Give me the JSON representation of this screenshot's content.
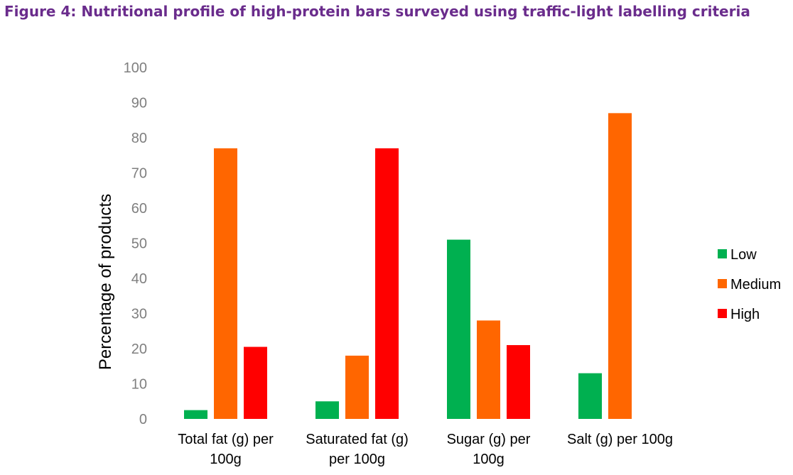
{
  "title": "Figure 4: Nutritional profile of high-protein bars surveyed using traffic-light labelling criteria",
  "chart_data": {
    "type": "bar",
    "title": "Figure 4: Nutritional profile of high-protein bars surveyed using traffic-light labelling criteria",
    "xlabel": "",
    "ylabel": "Percentage of products",
    "ylim": [
      0,
      100
    ],
    "yticks": [
      0,
      10,
      20,
      30,
      40,
      50,
      60,
      70,
      80,
      90,
      100
    ],
    "grid": false,
    "legend_position": "right",
    "categories": [
      [
        "Total fat (g) per",
        "100g"
      ],
      [
        "Saturated fat (g)",
        "per 100g"
      ],
      [
        "Sugar (g) per",
        "100g"
      ],
      [
        "Salt (g) per 100g"
      ]
    ],
    "series": [
      {
        "name": "Low",
        "color": "#00b050",
        "values": [
          2.5,
          5,
          51,
          13
        ]
      },
      {
        "name": "Medium",
        "color": "#ff6600",
        "values": [
          77,
          18,
          28,
          87
        ]
      },
      {
        "name": "High",
        "color": "#ff0000",
        "values": [
          20.5,
          77,
          21,
          0
        ]
      }
    ]
  }
}
